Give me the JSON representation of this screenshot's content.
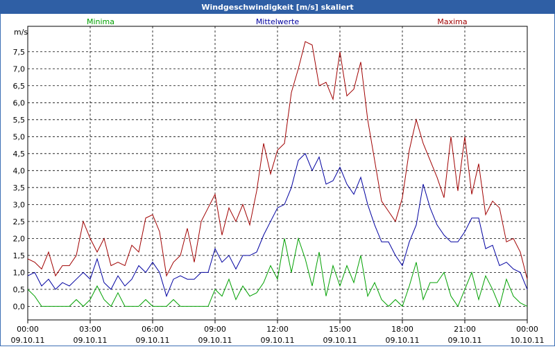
{
  "chart_data": {
    "type": "line",
    "title": "Windgeschwindigkeit [m/s] skaliert",
    "y_label": "m/s",
    "x": [
      0,
      20,
      40,
      60,
      80,
      100,
      120,
      140,
      160,
      180,
      200,
      220,
      240,
      260,
      280,
      300,
      320,
      340,
      360,
      380,
      400,
      420,
      440,
      460,
      480,
      500,
      520,
      540,
      560,
      580,
      600,
      620,
      640,
      660,
      680,
      700,
      720,
      740,
      760,
      780,
      800,
      820,
      840,
      860,
      880,
      900,
      920,
      940,
      960,
      980,
      1000,
      1020,
      1040,
      1060,
      1080,
      1100,
      1120,
      1140,
      1160,
      1180,
      1200,
      1220,
      1240,
      1260,
      1280,
      1300,
      1320,
      1340,
      1360,
      1380,
      1400,
      1420,
      1440
    ],
    "xlim": [
      0,
      1440
    ],
    "xticks": [
      {
        "value": 0,
        "label": "00:00"
      },
      {
        "value": 180,
        "label": "03:00"
      },
      {
        "value": 360,
        "label": "06:00"
      },
      {
        "value": 540,
        "label": "09:00"
      },
      {
        "value": 720,
        "label": "12:00"
      },
      {
        "value": 900,
        "label": "15:00"
      },
      {
        "value": 1080,
        "label": "18:00"
      },
      {
        "value": 1260,
        "label": "21:00"
      },
      {
        "value": 1440,
        "label": "00:00"
      }
    ],
    "xtick_dates": [
      "09.10.11",
      "09.10.11",
      "09.10.11",
      "09.10.11",
      "09.10.11",
      "09.10.11",
      "09.10.11",
      "09.10.11",
      "10.10.11"
    ],
    "ylim": [
      -0.4,
      8.25
    ],
    "yticks": [
      {
        "value": 0,
        "label": "0,0"
      },
      {
        "value": 0.5,
        "label": "0,5"
      },
      {
        "value": 1,
        "label": "1,0"
      },
      {
        "value": 1.5,
        "label": "1,5"
      },
      {
        "value": 2,
        "label": "2,0"
      },
      {
        "value": 2.5,
        "label": "2,5"
      },
      {
        "value": 3,
        "label": "3,0"
      },
      {
        "value": 3.5,
        "label": "3,5"
      },
      {
        "value": 4,
        "label": "4,0"
      },
      {
        "value": 4.5,
        "label": "4,5"
      },
      {
        "value": 5,
        "label": "5,0"
      },
      {
        "value": 5.5,
        "label": "5,5"
      },
      {
        "value": 6,
        "label": "6,0"
      },
      {
        "value": 6.5,
        "label": "6,5"
      },
      {
        "value": 7,
        "label": "7,0"
      },
      {
        "value": 7.5,
        "label": "7,5"
      }
    ],
    "grid": true,
    "series": [
      {
        "name": "Minima",
        "color": "#00a000",
        "values": [
          0.5,
          0.3,
          0,
          0,
          0,
          0,
          0,
          0.2,
          0,
          0.2,
          0.6,
          0.2,
          0,
          0.4,
          0,
          0,
          0,
          0.2,
          0,
          0,
          0,
          0.2,
          0,
          0,
          0,
          0,
          0,
          0.5,
          0.3,
          0.8,
          0.2,
          0.6,
          0.3,
          0.4,
          0.7,
          1.2,
          0.8,
          2.0,
          1.0,
          2.0,
          1.4,
          0.6,
          1.6,
          0.3,
          1.2,
          0.6,
          1.2,
          0.7,
          1.5,
          0.3,
          0.7,
          0.2,
          0,
          0.2,
          0,
          0.6,
          1.3,
          0.2,
          0.7,
          0.7,
          1.0,
          0.3,
          0,
          0.5,
          1.0,
          0.2,
          0.9,
          0.5,
          0,
          0.8,
          0.3,
          0.1,
          0
        ]
      },
      {
        "name": "Mittelwerte",
        "color": "#0000a0",
        "values": [
          0.9,
          1.0,
          0.6,
          0.8,
          0.5,
          0.7,
          0.6,
          0.8,
          1.0,
          0.8,
          1.4,
          0.7,
          0.5,
          0.9,
          0.6,
          0.8,
          1.2,
          1.0,
          1.3,
          1.0,
          0.3,
          0.8,
          0.9,
          0.8,
          0.8,
          1.0,
          1.0,
          1.7,
          1.3,
          1.5,
          1.1,
          1.5,
          1.5,
          1.6,
          2.1,
          2.5,
          2.9,
          3.0,
          3.5,
          4.3,
          4.5,
          4.0,
          4.4,
          3.6,
          3.7,
          4.1,
          3.6,
          3.3,
          3.8,
          3.0,
          2.4,
          1.9,
          1.9,
          1.5,
          1.2,
          1.9,
          2.4,
          3.6,
          2.9,
          2.4,
          2.1,
          1.9,
          1.9,
          2.2,
          2.6,
          2.6,
          1.7,
          1.8,
          1.2,
          1.3,
          1.1,
          1.0,
          0.5
        ]
      },
      {
        "name": "Maxima",
        "color": "#a00000",
        "values": [
          1.4,
          1.3,
          1.1,
          1.6,
          0.9,
          1.2,
          1.2,
          1.5,
          2.5,
          2.0,
          1.6,
          2.0,
          1.2,
          1.3,
          1.2,
          1.8,
          1.6,
          2.6,
          2.7,
          2.2,
          0.9,
          1.3,
          1.5,
          2.3,
          1.3,
          2.5,
          2.9,
          3.3,
          2.1,
          2.9,
          2.5,
          3.0,
          2.4,
          3.4,
          4.8,
          3.9,
          4.6,
          4.8,
          6.3,
          7.0,
          7.8,
          7.7,
          6.5,
          6.6,
          6.1,
          7.5,
          6.2,
          6.4,
          7.2,
          5.5,
          4.3,
          3.1,
          2.8,
          2.5,
          3.2,
          4.6,
          5.5,
          4.8,
          4.3,
          3.8,
          3.2,
          5.0,
          3.4,
          5.0,
          3.3,
          4.2,
          2.7,
          3.1,
          2.9,
          1.9,
          2.0,
          1.6,
          0.8
        ]
      }
    ]
  }
}
